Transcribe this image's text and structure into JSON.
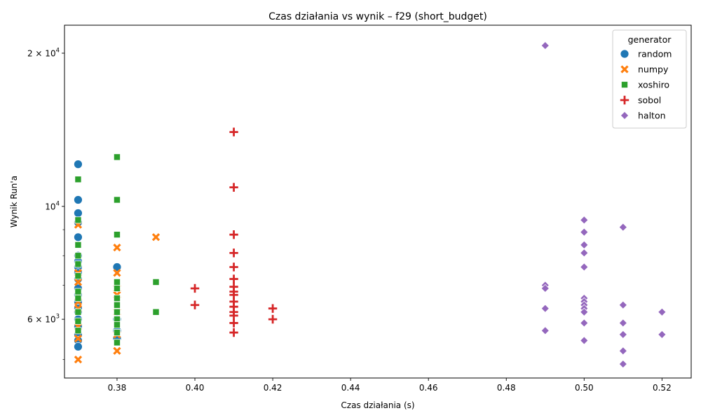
{
  "chart_data": {
    "type": "scatter",
    "title": "Czas działania vs wynik – f29 (short_budget)",
    "xlabel": "Czas działania (s)",
    "ylabel": "Wynik Run'a",
    "x_scale": "linear",
    "y_scale": "log",
    "xlim": [
      0.3665,
      0.5275
    ],
    "ylim": [
      4600,
      22700
    ],
    "x_ticks": [
      0.38,
      0.4,
      0.42,
      0.44,
      0.46,
      0.48,
      0.5,
      0.52
    ],
    "x_tick_labels": [
      "0.38",
      "0.40",
      "0.42",
      "0.44",
      "0.46",
      "0.48",
      "0.50",
      "0.52"
    ],
    "y_major_ticks": [
      6000,
      10000,
      20000
    ],
    "y_major_tick_labels": [
      {
        "mantissa": "6",
        "exp": "3"
      },
      {
        "mantissa": "",
        "exp": "4"
      },
      {
        "mantissa": "2",
        "exp": "4"
      }
    ],
    "y_minor_ticks": [
      5000,
      7000,
      8000,
      9000
    ],
    "grid": false,
    "legend": {
      "title": "generator",
      "position": "top-right"
    },
    "series": [
      {
        "name": "random",
        "marker": "circle",
        "color": "#1f77b4",
        "points": [
          [
            0.37,
            12100
          ],
          [
            0.37,
            10300
          ],
          [
            0.37,
            9700
          ],
          [
            0.37,
            9300
          ],
          [
            0.37,
            8700
          ],
          [
            0.37,
            8000
          ],
          [
            0.37,
            7800
          ],
          [
            0.37,
            7600
          ],
          [
            0.37,
            7400
          ],
          [
            0.37,
            7200
          ],
          [
            0.37,
            6900
          ],
          [
            0.37,
            6700
          ],
          [
            0.37,
            6500
          ],
          [
            0.37,
            6300
          ],
          [
            0.37,
            6200
          ],
          [
            0.37,
            6000
          ],
          [
            0.37,
            5800
          ],
          [
            0.37,
            5600
          ],
          [
            0.37,
            5450
          ],
          [
            0.37,
            5300
          ],
          [
            0.38,
            7600
          ],
          [
            0.38,
            6000
          ],
          [
            0.38,
            5700
          ],
          [
            0.38,
            5500
          ]
        ]
      },
      {
        "name": "numpy",
        "marker": "x",
        "color": "#ff7f0e",
        "points": [
          [
            0.37,
            9200
          ],
          [
            0.37,
            7400
          ],
          [
            0.37,
            7100
          ],
          [
            0.37,
            6500
          ],
          [
            0.37,
            6300
          ],
          [
            0.37,
            5800
          ],
          [
            0.37,
            5500
          ],
          [
            0.37,
            5000
          ],
          [
            0.38,
            8300
          ],
          [
            0.38,
            7400
          ],
          [
            0.38,
            6900
          ],
          [
            0.38,
            6700
          ],
          [
            0.38,
            6200
          ],
          [
            0.38,
            5600
          ],
          [
            0.38,
            5200
          ],
          [
            0.39,
            8700
          ]
        ]
      },
      {
        "name": "xoshiro",
        "marker": "square",
        "color": "#2ca02c",
        "points": [
          [
            0.37,
            11300
          ],
          [
            0.37,
            9400
          ],
          [
            0.37,
            8400
          ],
          [
            0.37,
            8000
          ],
          [
            0.37,
            7700
          ],
          [
            0.37,
            7300
          ],
          [
            0.37,
            6800
          ],
          [
            0.37,
            6600
          ],
          [
            0.37,
            6200
          ],
          [
            0.37,
            5950
          ],
          [
            0.37,
            5700
          ],
          [
            0.38,
            12500
          ],
          [
            0.38,
            10300
          ],
          [
            0.38,
            8800
          ],
          [
            0.38,
            7100
          ],
          [
            0.38,
            6900
          ],
          [
            0.38,
            6600
          ],
          [
            0.38,
            6400
          ],
          [
            0.38,
            6200
          ],
          [
            0.38,
            6000
          ],
          [
            0.38,
            5850
          ],
          [
            0.38,
            5650
          ],
          [
            0.38,
            5400
          ],
          [
            0.39,
            7100
          ],
          [
            0.39,
            6200
          ]
        ]
      },
      {
        "name": "sobol",
        "marker": "plus",
        "color": "#d62728",
        "points": [
          [
            0.4,
            6900
          ],
          [
            0.4,
            6400
          ],
          [
            0.41,
            14000
          ],
          [
            0.41,
            10900
          ],
          [
            0.41,
            8800
          ],
          [
            0.41,
            8100
          ],
          [
            0.41,
            7600
          ],
          [
            0.41,
            7200
          ],
          [
            0.41,
            6950
          ],
          [
            0.41,
            6800
          ],
          [
            0.41,
            6700
          ],
          [
            0.41,
            6500
          ],
          [
            0.41,
            6350
          ],
          [
            0.41,
            6200
          ],
          [
            0.41,
            6100
          ],
          [
            0.41,
            5900
          ],
          [
            0.41,
            5650
          ],
          [
            0.42,
            6300
          ],
          [
            0.42,
            6000
          ]
        ]
      },
      {
        "name": "halton",
        "marker": "diamond",
        "color": "#9467bd",
        "points": [
          [
            0.49,
            20700
          ],
          [
            0.49,
            7000
          ],
          [
            0.49,
            6900
          ],
          [
            0.49,
            6300
          ],
          [
            0.49,
            5700
          ],
          [
            0.5,
            9400
          ],
          [
            0.5,
            8900
          ],
          [
            0.5,
            8400
          ],
          [
            0.5,
            8100
          ],
          [
            0.5,
            7600
          ],
          [
            0.5,
            6600
          ],
          [
            0.5,
            6500
          ],
          [
            0.5,
            6400
          ],
          [
            0.5,
            6300
          ],
          [
            0.5,
            6200
          ],
          [
            0.5,
            5900
          ],
          [
            0.5,
            5450
          ],
          [
            0.51,
            9100
          ],
          [
            0.51,
            6400
          ],
          [
            0.51,
            5900
          ],
          [
            0.51,
            5600
          ],
          [
            0.51,
            5200
          ],
          [
            0.51,
            4900
          ],
          [
            0.52,
            6200
          ],
          [
            0.52,
            5600
          ]
        ]
      }
    ]
  }
}
